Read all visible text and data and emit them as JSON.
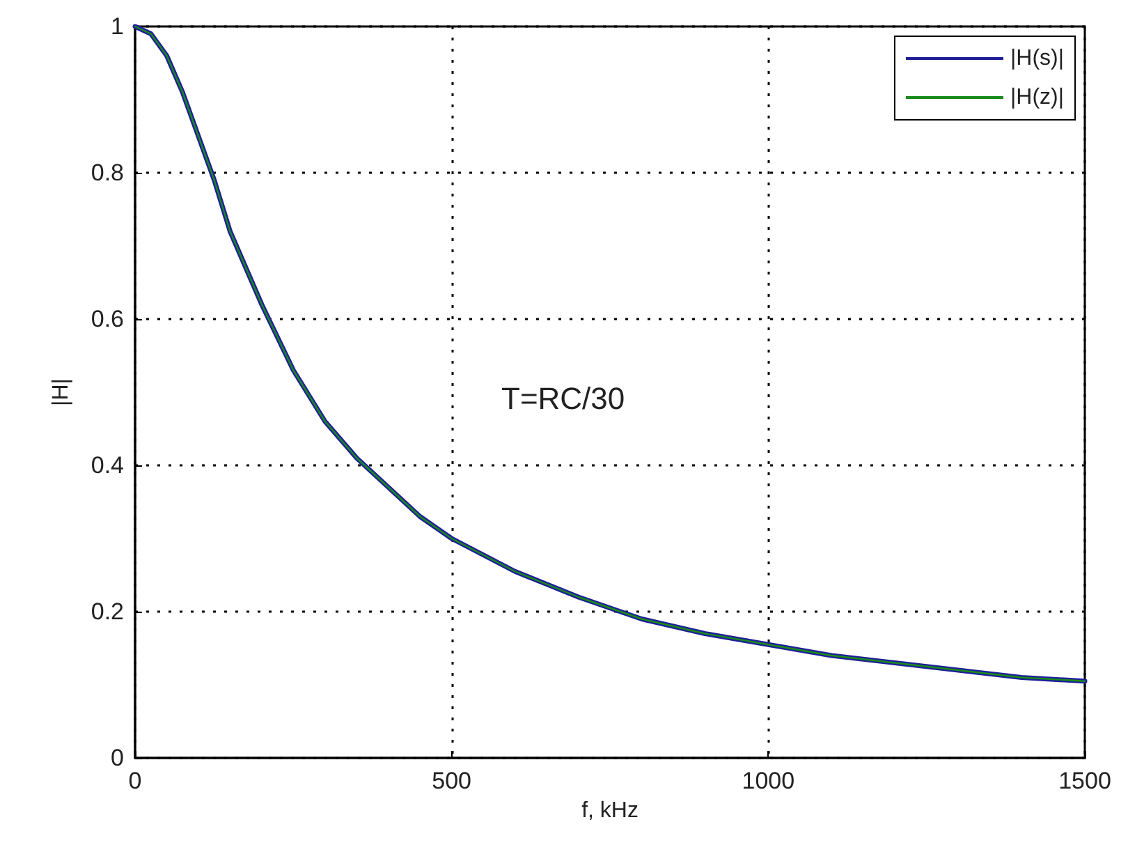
{
  "chart_data": {
    "type": "line",
    "xlabel": "f, kHz",
    "ylabel": "|H|",
    "x": [
      0,
      25,
      50,
      75,
      100,
      125,
      150,
      200,
      250,
      300,
      350,
      400,
      450,
      500,
      600,
      700,
      800,
      900,
      1000,
      1100,
      1200,
      1300,
      1400,
      1500
    ],
    "series": [
      {
        "name": "|H(s)|",
        "color": "#1f1f9a",
        "values": [
          1,
          0.99,
          0.96,
          0.91,
          0.85,
          0.79,
          0.72,
          0.62,
          0.53,
          0.46,
          0.41,
          0.37,
          0.33,
          0.3,
          0.255,
          0.22,
          0.19,
          0.17,
          0.155,
          0.14,
          0.13,
          0.12,
          0.11,
          0.105
        ]
      },
      {
        "name": "|H(z)|",
        "color": "#1a8a1a",
        "values": [
          1,
          0.99,
          0.96,
          0.91,
          0.85,
          0.79,
          0.72,
          0.62,
          0.53,
          0.46,
          0.41,
          0.37,
          0.33,
          0.3,
          0.255,
          0.22,
          0.19,
          0.17,
          0.155,
          0.14,
          0.13,
          0.12,
          0.11,
          0.105
        ]
      }
    ],
    "annotations": [
      "T=RC/30"
    ],
    "xlim": [
      0,
      1500
    ],
    "xticks": [
      0,
      500,
      1000,
      1500
    ],
    "ylim": [
      0,
      1
    ],
    "yticks": [
      0,
      0.2,
      0.4,
      0.6,
      0.8,
      1
    ],
    "grid": true,
    "legend": "top right",
    "marker": "none",
    "line_style": "solid"
  }
}
